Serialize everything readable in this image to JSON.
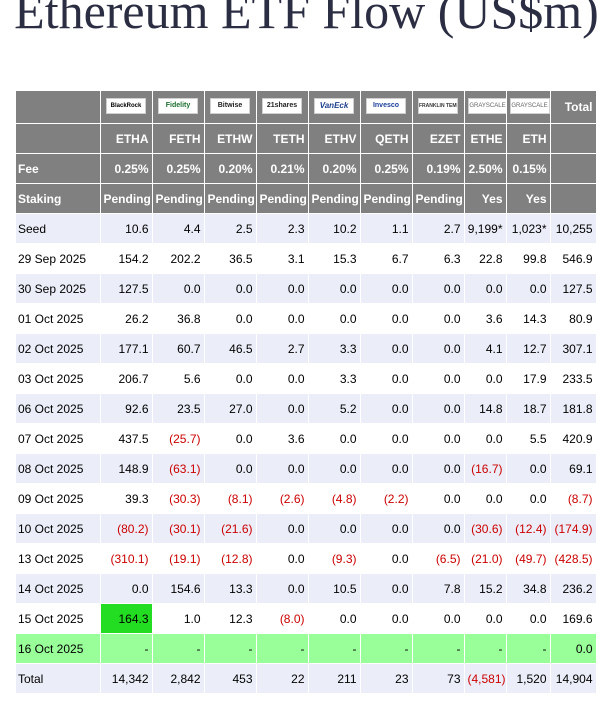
{
  "title": "Ethereum ETF Flow (US$m)",
  "issuers": [
    "BlackRock",
    "Fidelity",
    "Bitwise",
    "21shares",
    "VanEck",
    "Invesco",
    "FRANKLIN TEMPLETON",
    "GRAYSCALE",
    "GRAYSCALE"
  ],
  "total_label": "Total",
  "tickers": [
    "ETHA",
    "FETH",
    "ETHW",
    "TETH",
    "ETHV",
    "QETH",
    "EZET",
    "ETHE",
    "ETH"
  ],
  "fee_label": "Fee",
  "fees": [
    "0.25%",
    "0.25%",
    "0.20%",
    "0.21%",
    "0.20%",
    "0.25%",
    "0.19%",
    "2.50%",
    "0.15%"
  ],
  "staking_label": "Staking",
  "staking": [
    "Pending",
    "Pending",
    "Pending",
    "Pending",
    "Pending",
    "Pending",
    "Pending",
    "Yes",
    "Yes"
  ],
  "rows": [
    {
      "date": "Seed",
      "values": [
        "10.6",
        "4.4",
        "2.5",
        "2.3",
        "10.2",
        "1.1",
        "2.7",
        "9,199*",
        "1,023*"
      ],
      "total": "10,255"
    },
    {
      "date": "29 Sep 2025",
      "values": [
        "154.2",
        "202.2",
        "36.5",
        "3.1",
        "15.3",
        "6.7",
        "6.3",
        "22.8",
        "99.8"
      ],
      "total": "546.9"
    },
    {
      "date": "30 Sep 2025",
      "values": [
        "127.5",
        "0.0",
        "0.0",
        "0.0",
        "0.0",
        "0.0",
        "0.0",
        "0.0",
        "0.0"
      ],
      "total": "127.5"
    },
    {
      "date": "01 Oct 2025",
      "values": [
        "26.2",
        "36.8",
        "0.0",
        "0.0",
        "0.0",
        "0.0",
        "0.0",
        "3.6",
        "14.3"
      ],
      "total": "80.9"
    },
    {
      "date": "02 Oct 2025",
      "values": [
        "177.1",
        "60.7",
        "46.5",
        "2.7",
        "3.3",
        "0.0",
        "0.0",
        "4.1",
        "12.7"
      ],
      "total": "307.1"
    },
    {
      "date": "03 Oct 2025",
      "values": [
        "206.7",
        "5.6",
        "0.0",
        "0.0",
        "3.3",
        "0.0",
        "0.0",
        "0.0",
        "17.9"
      ],
      "total": "233.5"
    },
    {
      "date": "06 Oct 2025",
      "values": [
        "92.6",
        "23.5",
        "27.0",
        "0.0",
        "5.2",
        "0.0",
        "0.0",
        "14.8",
        "18.7"
      ],
      "total": "181.8"
    },
    {
      "date": "07 Oct 2025",
      "values": [
        "437.5",
        "(25.7)",
        "0.0",
        "3.6",
        "0.0",
        "0.0",
        "0.0",
        "0.0",
        "5.5"
      ],
      "total": "420.9"
    },
    {
      "date": "08 Oct 2025",
      "values": [
        "148.9",
        "(63.1)",
        "0.0",
        "0.0",
        "0.0",
        "0.0",
        "0.0",
        "(16.7)",
        "0.0"
      ],
      "total": "69.1"
    },
    {
      "date": "09 Oct 2025",
      "values": [
        "39.3",
        "(30.3)",
        "(8.1)",
        "(2.6)",
        "(4.8)",
        "(2.2)",
        "0.0",
        "0.0",
        "0.0"
      ],
      "total": "(8.7)"
    },
    {
      "date": "10 Oct 2025",
      "values": [
        "(80.2)",
        "(30.1)",
        "(21.6)",
        "0.0",
        "0.0",
        "0.0",
        "0.0",
        "(30.6)",
        "(12.4)"
      ],
      "total": "(174.9)"
    },
    {
      "date": "13 Oct 2025",
      "values": [
        "(310.1)",
        "(19.1)",
        "(12.8)",
        "0.0",
        "(9.3)",
        "0.0",
        "(6.5)",
        "(21.0)",
        "(49.7)"
      ],
      "total": "(428.5)"
    },
    {
      "date": "14 Oct 2025",
      "values": [
        "0.0",
        "154.6",
        "13.3",
        "0.0",
        "10.5",
        "0.0",
        "7.8",
        "15.2",
        "34.8"
      ],
      "total": "236.2"
    },
    {
      "date": "15 Oct 2025",
      "values": [
        "164.3",
        "1.0",
        "12.3",
        "(8.0)",
        "0.0",
        "0.0",
        "0.0",
        "0.0",
        "0.0"
      ],
      "total": "169.6"
    },
    {
      "date": "16 Oct 2025",
      "values": [
        "-",
        "-",
        "-",
        "-",
        "-",
        "-",
        "-",
        "-",
        "-"
      ],
      "total": "0.0"
    }
  ],
  "totals": {
    "date": "Total",
    "values": [
      "14,342",
      "2,842",
      "453",
      "22",
      "211",
      "23",
      "73",
      "(4,581)",
      "1,520"
    ],
    "total": "14,904"
  },
  "colors": {
    "header_bg": "#808080",
    "row_alt_bg": "#ebeef8",
    "pending_bg": "#99ff99",
    "highlight_bg": "#22dd22",
    "negative": "#cc0000"
  }
}
